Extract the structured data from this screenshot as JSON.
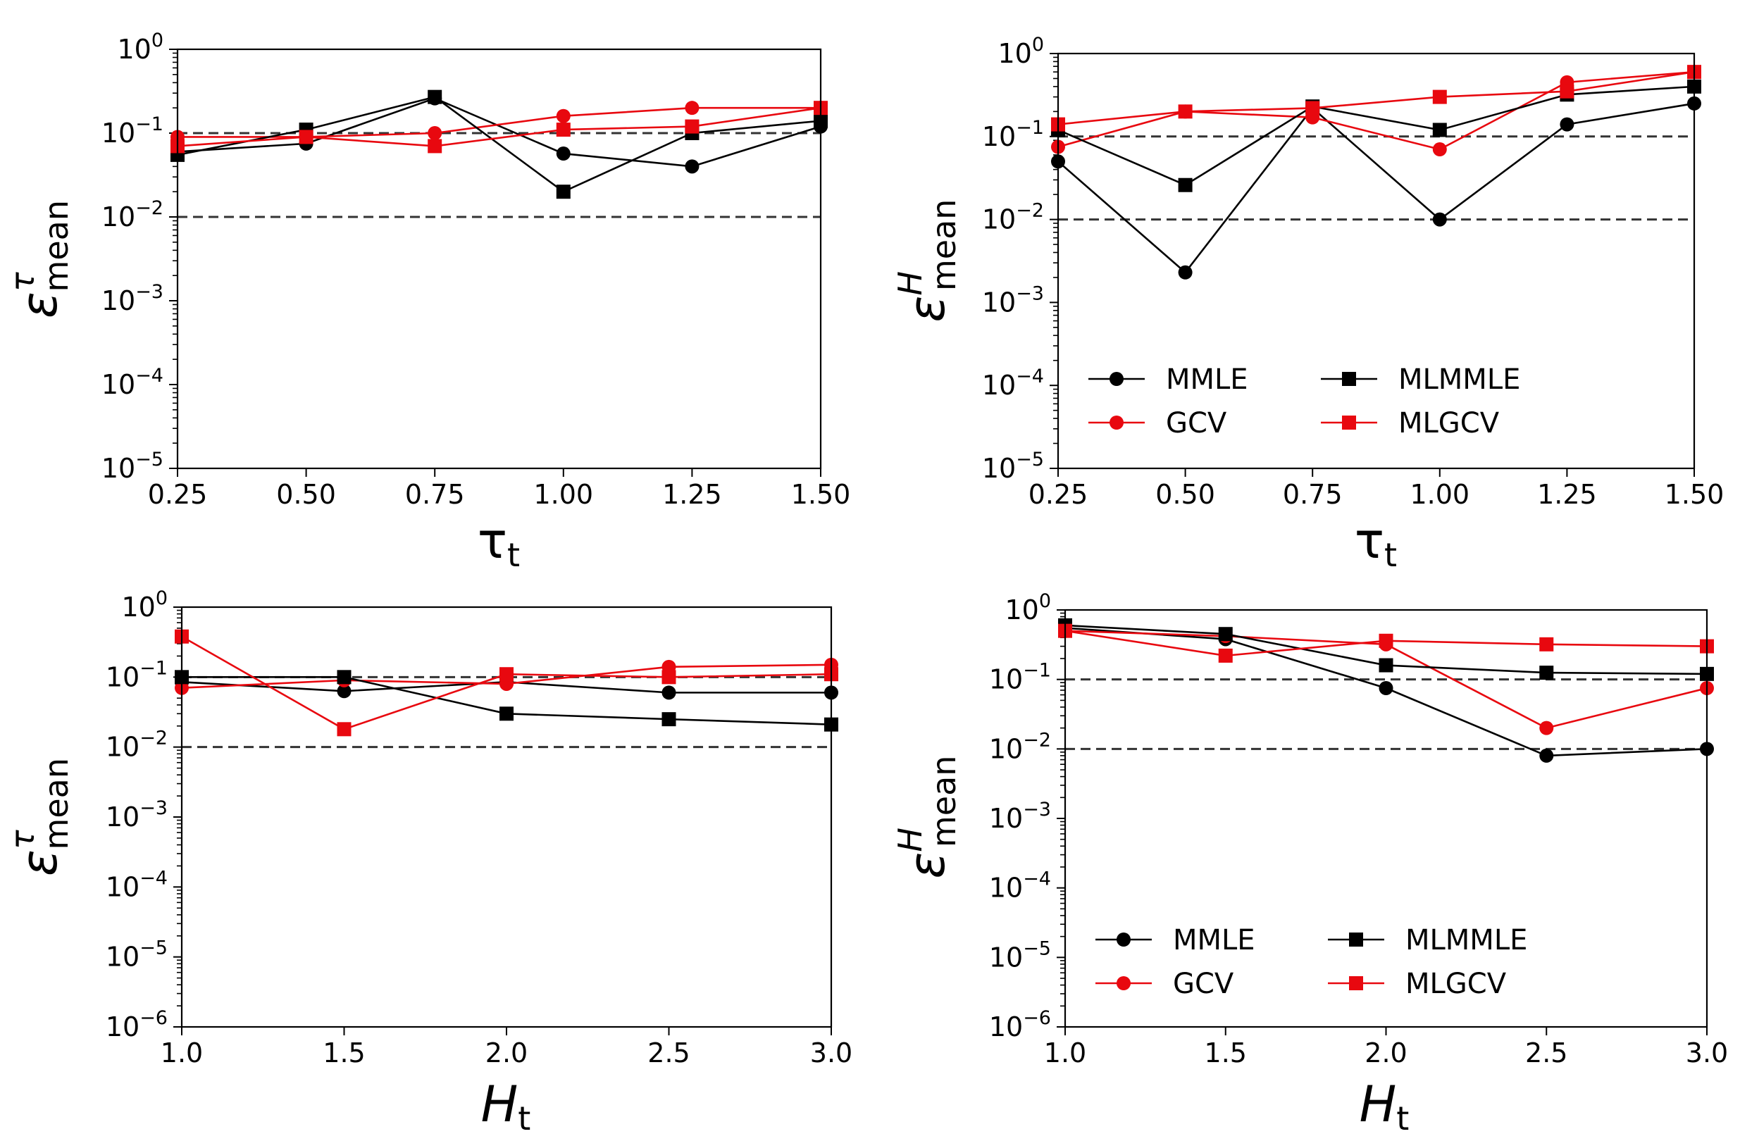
{
  "figure": {
    "description": "Four log-scale line plots of mean relative error"
  },
  "chart_data": [
    {
      "id": "top-left",
      "type": "line",
      "yscale": "log",
      "ylabel_base": "ε",
      "ylabel_sup": "τ",
      "ylabel_sub": "mean",
      "xlabel_base": "τ",
      "xlabel_sub": "t",
      "xlabel_italic": false,
      "xlim": [
        0.25,
        1.5
      ],
      "ylim_exp": [
        -5,
        0
      ],
      "xticks": [
        0.25,
        0.5,
        0.75,
        1.0,
        1.25,
        1.5
      ],
      "xtick_labels": [
        "0.25",
        "0.50",
        "0.75",
        "1.00",
        "1.25",
        "1.50"
      ],
      "ytick_exps": [
        -5,
        -4,
        -3,
        -2,
        -1,
        0
      ],
      "ref_lines": [
        0.1,
        0.01
      ],
      "legend": false,
      "x": [
        0.25,
        0.5,
        0.75,
        1.0,
        1.25,
        1.5
      ],
      "series": [
        {
          "name": "MMLE",
          "color": "#000000",
          "marker": "circle",
          "values": [
            0.06,
            0.075,
            0.26,
            0.057,
            0.04,
            0.12
          ]
        },
        {
          "name": "GCV",
          "color": "#e8080f",
          "marker": "circle",
          "values": [
            0.09,
            0.09,
            0.1,
            0.16,
            0.2,
            0.2
          ]
        },
        {
          "name": "MLMMLE",
          "color": "#000000",
          "marker": "square",
          "values": [
            0.055,
            0.11,
            0.27,
            0.02,
            0.1,
            0.14
          ]
        },
        {
          "name": "MLGCV",
          "color": "#e8080f",
          "marker": "square",
          "values": [
            0.07,
            0.09,
            0.07,
            0.11,
            0.12,
            0.2
          ]
        }
      ]
    },
    {
      "id": "top-right",
      "type": "line",
      "yscale": "log",
      "ylabel_base": "ε",
      "ylabel_sup": "H",
      "ylabel_sub": "mean",
      "xlabel_base": "τ",
      "xlabel_sub": "t",
      "xlabel_italic": false,
      "xlim": [
        0.25,
        1.5
      ],
      "ylim_exp": [
        -5,
        0
      ],
      "xticks": [
        0.25,
        0.5,
        0.75,
        1.0,
        1.25,
        1.5
      ],
      "xtick_labels": [
        "0.25",
        "0.50",
        "0.75",
        "1.00",
        "1.25",
        "1.50"
      ],
      "ytick_exps": [
        -5,
        -4,
        -3,
        -2,
        -1,
        0
      ],
      "ref_lines": [
        0.1,
        0.01
      ],
      "legend": true,
      "x": [
        0.25,
        0.5,
        0.75,
        1.0,
        1.25,
        1.5
      ],
      "series": [
        {
          "name": "MMLE",
          "color": "#000000",
          "marker": "circle",
          "values": [
            0.05,
            0.0023,
            0.22,
            0.01,
            0.14,
            0.25
          ]
        },
        {
          "name": "GCV",
          "color": "#e8080f",
          "marker": "circle",
          "values": [
            0.075,
            0.2,
            0.17,
            0.07,
            0.45,
            0.6
          ]
        },
        {
          "name": "MLMMLE",
          "color": "#000000",
          "marker": "square",
          "values": [
            0.12,
            0.026,
            0.23,
            0.12,
            0.32,
            0.4
          ]
        },
        {
          "name": "MLGCV",
          "color": "#e8080f",
          "marker": "square",
          "values": [
            0.14,
            0.2,
            0.22,
            0.3,
            0.35,
            0.6
          ]
        }
      ]
    },
    {
      "id": "bottom-left",
      "type": "line",
      "yscale": "log",
      "ylabel_base": "ε",
      "ylabel_sup": "τ",
      "ylabel_sub": "mean",
      "xlabel_base": "H",
      "xlabel_sub": "t",
      "xlabel_italic": true,
      "xlim": [
        1.0,
        3.0
      ],
      "ylim_exp": [
        -6,
        0
      ],
      "xticks": [
        1.0,
        1.5,
        2.0,
        2.5,
        3.0
      ],
      "xtick_labels": [
        "1.0",
        "1.5",
        "2.0",
        "2.5",
        "3.0"
      ],
      "ytick_exps": [
        -6,
        -5,
        -4,
        -3,
        -2,
        -1,
        0
      ],
      "ref_lines": [
        0.1,
        0.01
      ],
      "legend": false,
      "x": [
        1.0,
        1.5,
        2.0,
        2.5,
        3.0
      ],
      "series": [
        {
          "name": "MMLE",
          "color": "#000000",
          "marker": "circle",
          "values": [
            0.085,
            0.063,
            0.085,
            0.06,
            0.06
          ]
        },
        {
          "name": "GCV",
          "color": "#e8080f",
          "marker": "circle",
          "values": [
            0.07,
            0.09,
            0.08,
            0.14,
            0.15
          ]
        },
        {
          "name": "MLMMLE",
          "color": "#000000",
          "marker": "square",
          "values": [
            0.1,
            0.1,
            0.03,
            0.025,
            0.021
          ]
        },
        {
          "name": "MLGCV",
          "color": "#e8080f",
          "marker": "square",
          "values": [
            0.38,
            0.018,
            0.11,
            0.1,
            0.11
          ]
        }
      ]
    },
    {
      "id": "bottom-right",
      "type": "line",
      "yscale": "log",
      "ylabel_base": "ε",
      "ylabel_sup": "H",
      "ylabel_sub": "mean",
      "xlabel_base": "H",
      "xlabel_sub": "t",
      "xlabel_italic": true,
      "xlim": [
        1.0,
        3.0
      ],
      "ylim_exp": [
        -6,
        0
      ],
      "xticks": [
        1.0,
        1.5,
        2.0,
        2.5,
        3.0
      ],
      "xtick_labels": [
        "1.0",
        "1.5",
        "2.0",
        "2.5",
        "3.0"
      ],
      "ytick_exps": [
        -6,
        -5,
        -4,
        -3,
        -2,
        -1,
        0
      ],
      "ref_lines": [
        0.1,
        0.01
      ],
      "legend": true,
      "x": [
        1.0,
        1.5,
        2.0,
        2.5,
        3.0
      ],
      "series": [
        {
          "name": "MMLE",
          "color": "#000000",
          "marker": "circle",
          "values": [
            0.55,
            0.38,
            0.075,
            0.008,
            0.01
          ]
        },
        {
          "name": "GCV",
          "color": "#e8080f",
          "marker": "circle",
          "values": [
            0.5,
            0.42,
            0.32,
            0.02,
            0.075
          ]
        },
        {
          "name": "MLMMLE",
          "color": "#000000",
          "marker": "square",
          "values": [
            0.6,
            0.45,
            0.16,
            0.125,
            0.12
          ]
        },
        {
          "name": "MLGCV",
          "color": "#e8080f",
          "marker": "square",
          "values": [
            0.5,
            0.22,
            0.36,
            0.32,
            0.3
          ]
        }
      ]
    }
  ]
}
